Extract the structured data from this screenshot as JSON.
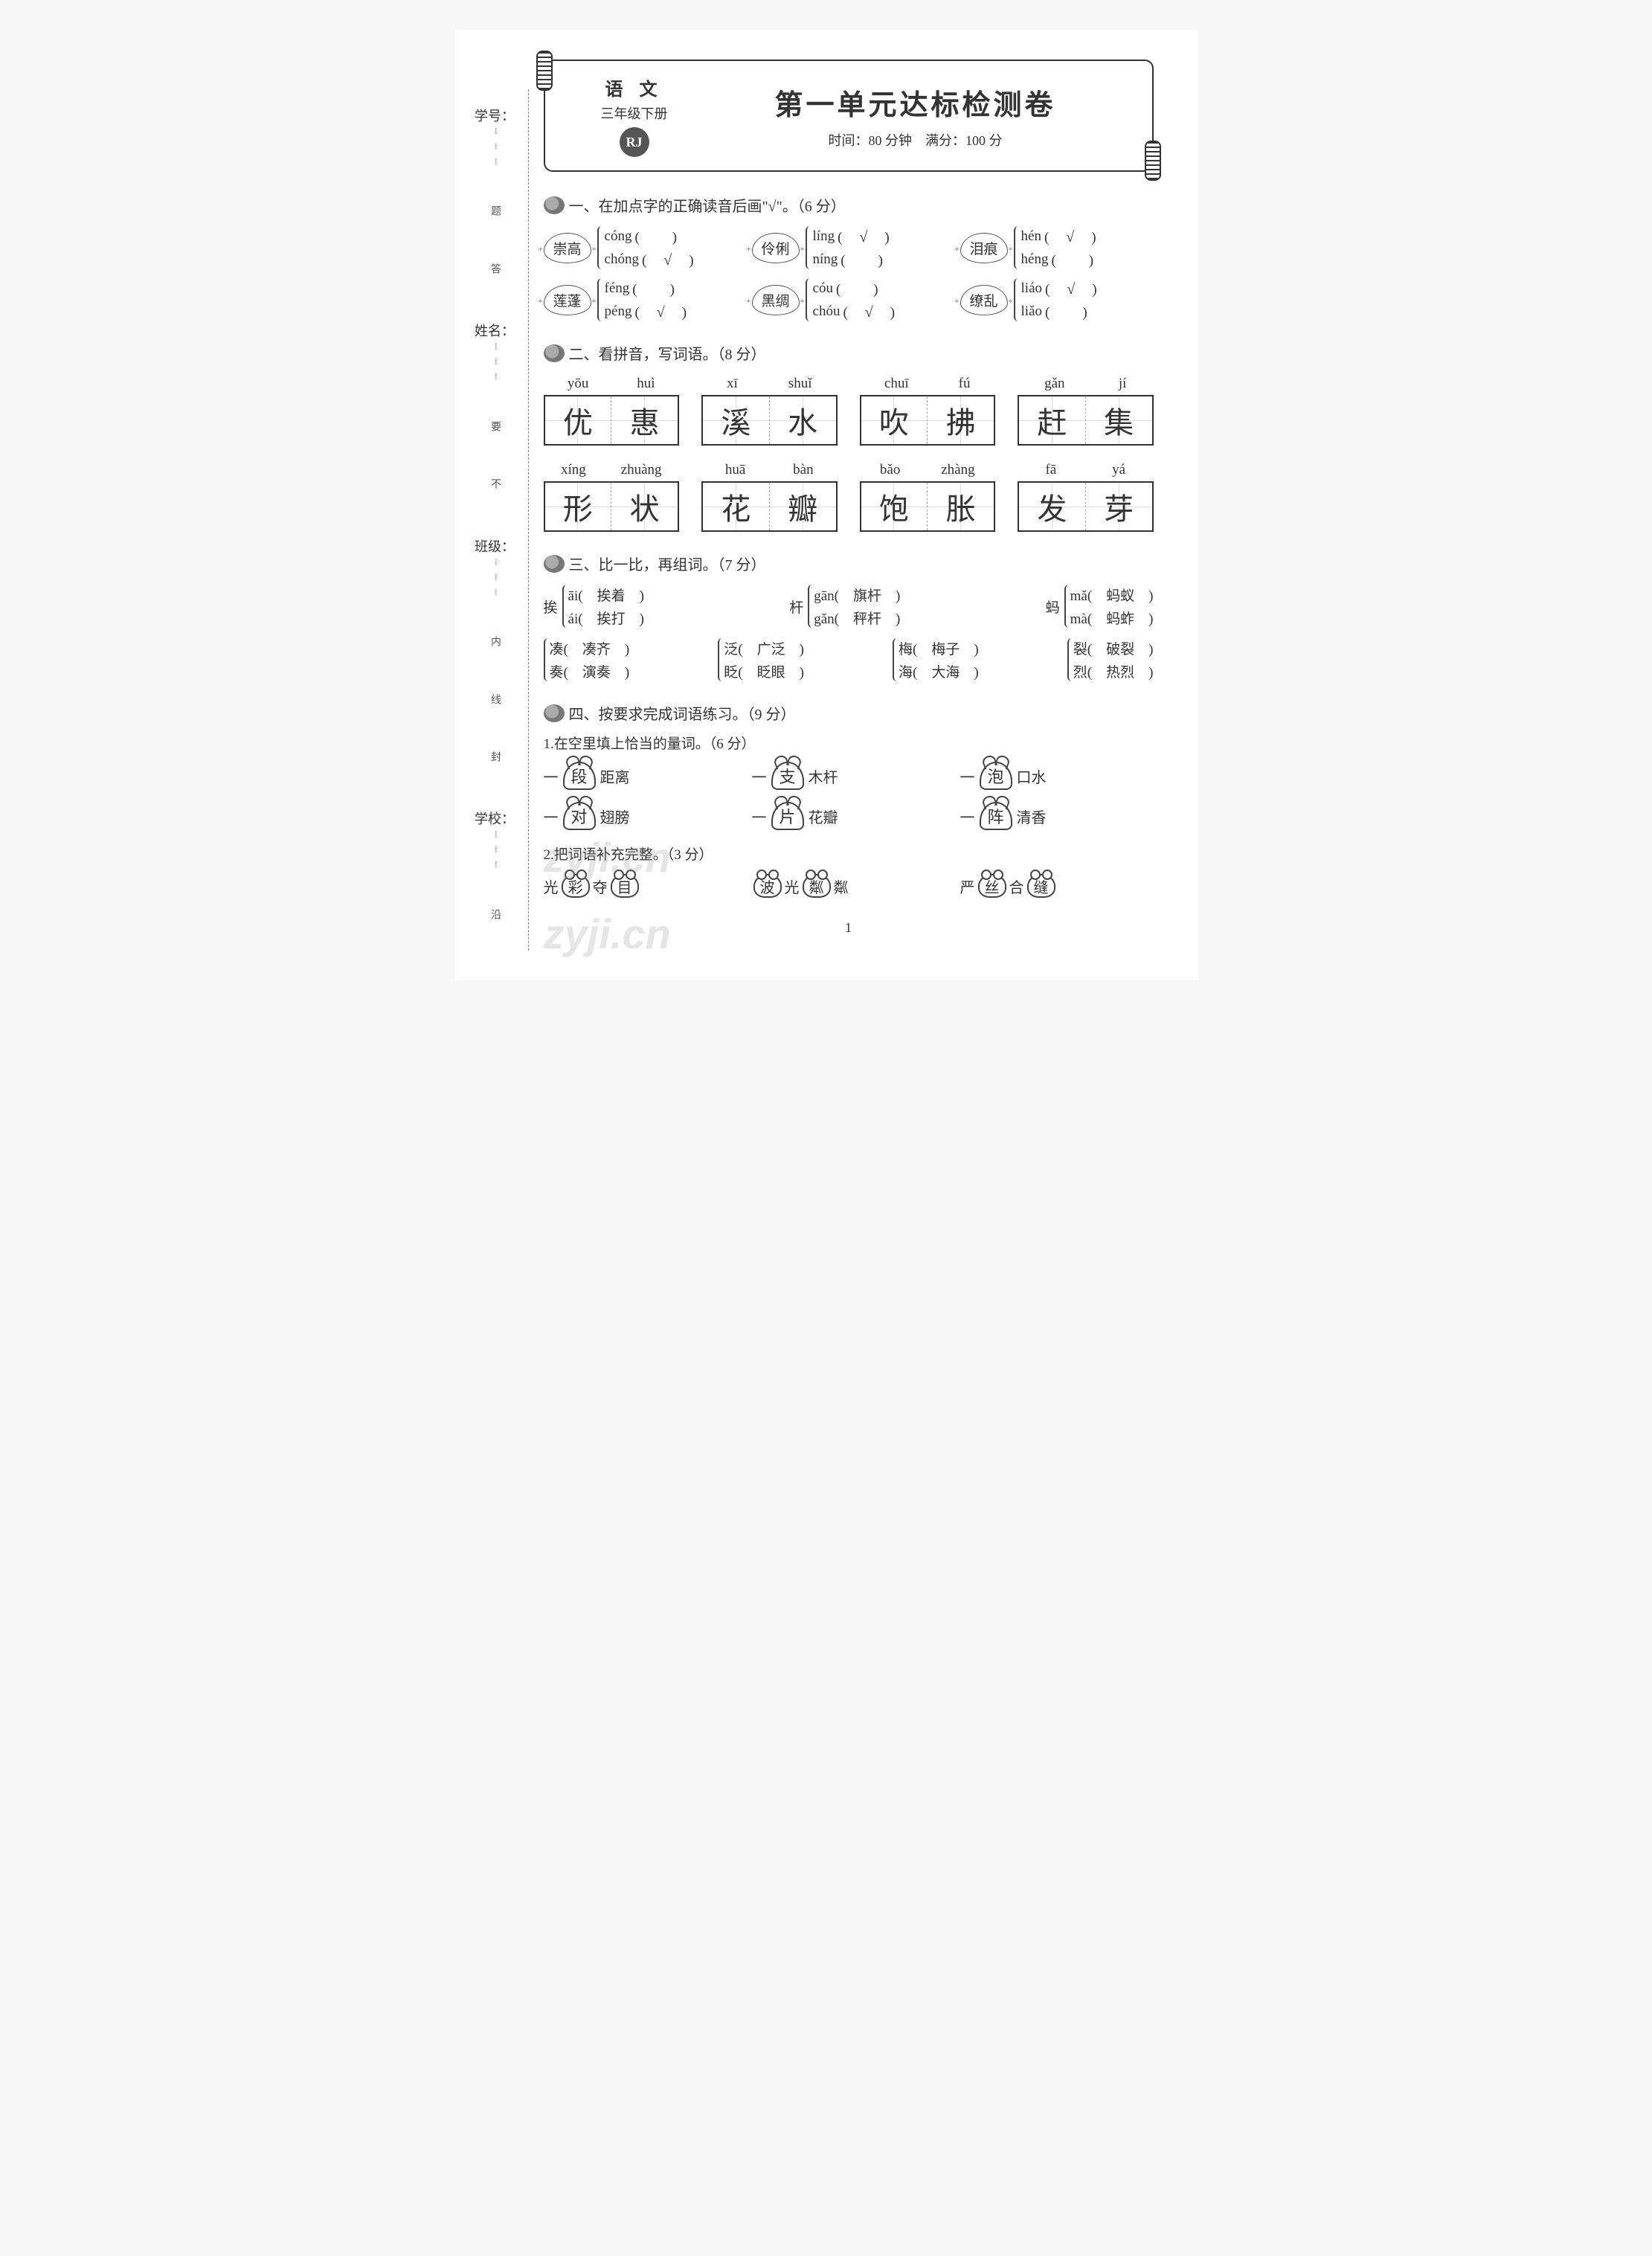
{
  "leftMargin": {
    "labels": [
      "学号：",
      "姓名：",
      "班级：",
      "学校："
    ],
    "hints": [
      "题",
      "答",
      "要",
      "不",
      "内",
      "线",
      "封",
      "沿"
    ]
  },
  "header": {
    "subject": "语 文",
    "grade": "三年级下册",
    "badge": "RJ",
    "title": "第一单元达标检测卷",
    "meta": "时间：80 分钟　满分：100 分"
  },
  "q1": {
    "title": "一、在加点字的正确读音后画\"√\"。（6 分）",
    "items": [
      {
        "word": "崇高",
        "opts": [
          {
            "p": "cóng",
            "chk": false
          },
          {
            "p": "chóng",
            "chk": true
          }
        ]
      },
      {
        "word": "伶俐",
        "opts": [
          {
            "p": "líng",
            "chk": true
          },
          {
            "p": "níng",
            "chk": false
          }
        ]
      },
      {
        "word": "泪痕",
        "opts": [
          {
            "p": "hén",
            "chk": true
          },
          {
            "p": "héng",
            "chk": false
          }
        ]
      },
      {
        "word": "莲蓬",
        "opts": [
          {
            "p": "féng",
            "chk": false
          },
          {
            "p": "péng",
            "chk": true
          }
        ]
      },
      {
        "word": "黑绸",
        "opts": [
          {
            "p": "cóu",
            "chk": false
          },
          {
            "p": "chóu",
            "chk": true
          }
        ]
      },
      {
        "word": "缭乱",
        "opts": [
          {
            "p": "liáo",
            "chk": true
          },
          {
            "p": "liǎo",
            "chk": false
          }
        ]
      }
    ]
  },
  "q2": {
    "title": "二、看拼音，写词语。（8 分）",
    "items": [
      {
        "pinyin": [
          "yōu",
          "huì"
        ],
        "chars": [
          "优",
          "惠"
        ]
      },
      {
        "pinyin": [
          "xī",
          "shuǐ"
        ],
        "chars": [
          "溪",
          "水"
        ]
      },
      {
        "pinyin": [
          "chuī",
          "fú"
        ],
        "chars": [
          "吹",
          "拂"
        ]
      },
      {
        "pinyin": [
          "gǎn",
          "jí"
        ],
        "chars": [
          "赶",
          "集"
        ]
      },
      {
        "pinyin": [
          "xíng",
          "zhuàng"
        ],
        "chars": [
          "形",
          "状"
        ]
      },
      {
        "pinyin": [
          "huā",
          "bàn"
        ],
        "chars": [
          "花",
          "瓣"
        ]
      },
      {
        "pinyin": [
          "bǎo",
          "zhàng"
        ],
        "chars": [
          "饱",
          "胀"
        ]
      },
      {
        "pinyin": [
          "fā",
          "yá"
        ],
        "chars": [
          "发",
          "芽"
        ]
      }
    ]
  },
  "q3": {
    "title": "三、比一比，再组词。（7 分）",
    "row1": [
      {
        "head": "挨",
        "lines": [
          {
            "p": "āi(",
            "ans": "挨着",
            ")": ")"
          },
          {
            "p": "ái(",
            "ans": "挨打",
            ")": ")"
          }
        ]
      },
      {
        "head": "杆",
        "lines": [
          {
            "p": "gān(",
            "ans": "旗杆",
            ")": ")"
          },
          {
            "p": "gǎn(",
            "ans": "秤杆",
            ")": ")"
          }
        ]
      },
      {
        "head": "蚂",
        "lines": [
          {
            "p": "mǎ(",
            "ans": "蚂蚁",
            ")": ")"
          },
          {
            "p": "mà(",
            "ans": "蚂蚱",
            ")": ")"
          }
        ]
      }
    ],
    "row2": [
      {
        "lines": [
          {
            "c": "凑(",
            "ans": "凑齐",
            ")": ")"
          },
          {
            "c": "奏(",
            "ans": "演奏",
            ")": ")"
          }
        ]
      },
      {
        "lines": [
          {
            "c": "泛(",
            "ans": "广泛",
            ")": ")"
          },
          {
            "c": "眨(",
            "ans": "眨眼",
            ")": ")"
          }
        ]
      },
      {
        "lines": [
          {
            "c": "梅(",
            "ans": "梅子",
            ")": ")"
          },
          {
            "c": "海(",
            "ans": "大海",
            ")": ")"
          }
        ]
      },
      {
        "lines": [
          {
            "c": "裂(",
            "ans": "破裂",
            ")": ")"
          },
          {
            "c": "烈(",
            "ans": "热烈",
            ")": ")"
          }
        ]
      }
    ]
  },
  "q4": {
    "title": "四、按要求完成词语练习。（9 分）",
    "sub1": "1.在空里填上恰当的量词。（6 分）",
    "items1": [
      {
        "pre": "一",
        "fill": "段",
        "post": "距离"
      },
      {
        "pre": "一",
        "fill": "支",
        "post": "木杆"
      },
      {
        "pre": "一",
        "fill": "泡",
        "post": "口水"
      },
      {
        "pre": "一",
        "fill": "对",
        "post": "翅膀"
      },
      {
        "pre": "一",
        "fill": "片",
        "post": "花瓣"
      },
      {
        "pre": "一",
        "fill": "阵",
        "post": "清香"
      }
    ],
    "sub2": "2.把词语补充完整。（3 分）",
    "items2": [
      [
        "光",
        "彩",
        "夺",
        "目"
      ],
      [
        "波",
        "光",
        "粼",
        "粼"
      ],
      [
        "严",
        "丝",
        "合",
        "缝"
      ]
    ],
    "frogSlots2": [
      [
        1,
        3
      ],
      [
        0,
        2
      ],
      [
        1,
        3
      ]
    ]
  },
  "pageNum": "1",
  "watermark": "zyji.cn"
}
